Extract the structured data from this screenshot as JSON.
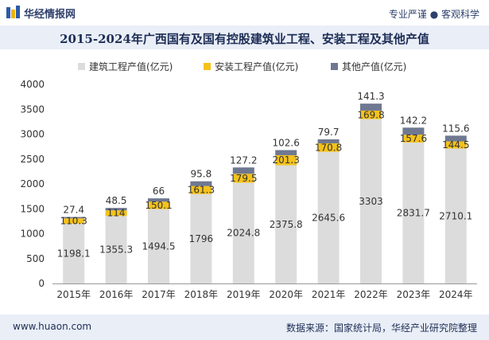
{
  "header": {
    "brand": "华经情报网",
    "tagline": "专业严谨 ● 客观科学"
  },
  "chart_data": {
    "type": "bar",
    "stacked": true,
    "title": "2015-2024年广西国有及国有控股建筑业工程、安装工程及其他产值",
    "categories": [
      "2015年",
      "2016年",
      "2017年",
      "2018年",
      "2019年",
      "2020年",
      "2021年",
      "2022年",
      "2023年",
      "2024年"
    ],
    "series": [
      {
        "name": "建筑工程产值(亿元)",
        "color": "#dcdcdc",
        "label_color": "#333333",
        "values": [
          1198.1,
          1355.3,
          1494.5,
          1796,
          2024.8,
          2375.8,
          2645.6,
          3303,
          2831.7,
          2710.1
        ],
        "labels": [
          "1198.1",
          "1355.3",
          "1494.5",
          "1796",
          "2024.8",
          "2375.8",
          "2645.6",
          "3303",
          "2831.7",
          "2710.1"
        ]
      },
      {
        "name": "安装工程产值(亿元)",
        "color": "#f5c21b",
        "label_color": "#333333",
        "values": [
          110.3,
          114,
          150.1,
          161.3,
          179.5,
          201.3,
          170.8,
          169.8,
          157.6,
          144.5
        ],
        "labels": [
          "110.3",
          "114",
          "150.1",
          "161.3",
          "179.5",
          "201.3",
          "170.8",
          "169.8",
          "157.6",
          "144.5"
        ]
      },
      {
        "name": "其他产值(亿元)",
        "color": "#6f7891",
        "label_color": "#333333",
        "values": [
          27.4,
          48.5,
          66,
          95.8,
          127.2,
          102.6,
          79.7,
          141.3,
          142.2,
          115.6
        ],
        "labels": [
          "27.4",
          "48.5",
          "66",
          "95.8",
          "127.2",
          "102.6",
          "79.7",
          "141.3",
          "142.2",
          "115.6"
        ]
      }
    ],
    "ylim": [
      0,
      4000
    ],
    "yticks": [
      "0",
      "500",
      "1000",
      "1500",
      "2000",
      "2500",
      "3000",
      "3500",
      "4000"
    ],
    "legend": "top",
    "grid": false
  },
  "footer": {
    "url": "www.huaon.com",
    "source": "数据来源：国家统计局，华经产业研究院整理"
  }
}
